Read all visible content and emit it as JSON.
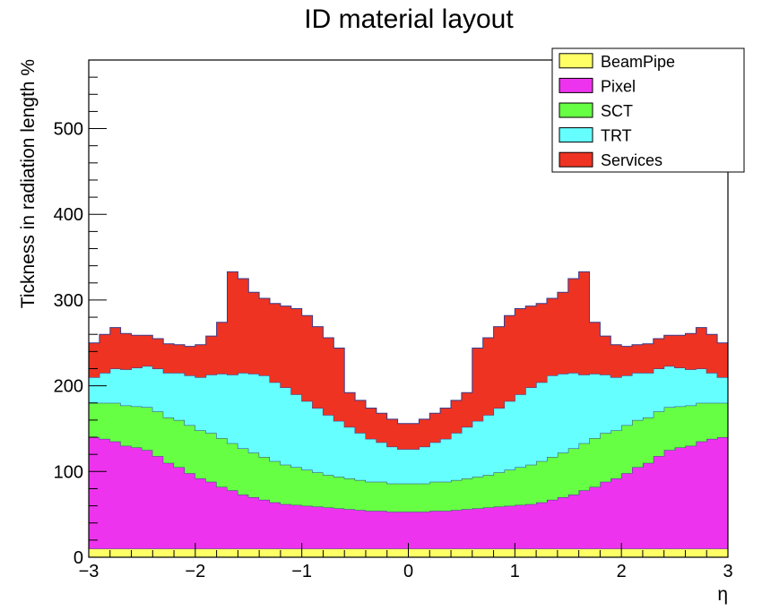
{
  "chart_data": {
    "type": "area",
    "stacked": true,
    "title": "ID material layout",
    "xlabel": "η",
    "ylabel": "Tickness in radiation length %",
    "xlim": [
      -3,
      3
    ],
    "ylim": [
      0,
      580
    ],
    "x_ticks": [
      -3,
      -2,
      -1,
      0,
      1,
      2,
      3
    ],
    "x_tick_labels": [
      "−3",
      "−2",
      "−1",
      "0",
      "1",
      "2",
      "3"
    ],
    "y_ticks": [
      0,
      100,
      200,
      300,
      400,
      500
    ],
    "y_tick_labels": [
      "0",
      "100",
      "200",
      "300",
      "400",
      "500"
    ],
    "grid": false,
    "legend_position": "top-right",
    "x": [
      -2.95,
      -2.85,
      -2.75,
      -2.65,
      -2.55,
      -2.45,
      -2.35,
      -2.25,
      -2.15,
      -2.05,
      -1.95,
      -1.85,
      -1.75,
      -1.65,
      -1.55,
      -1.45,
      -1.35,
      -1.25,
      -1.15,
      -1.05,
      -0.95,
      -0.85,
      -0.75,
      -0.65,
      -0.55,
      -0.45,
      -0.35,
      -0.25,
      -0.15,
      -0.05,
      0.05,
      0.15,
      0.25,
      0.35,
      0.45,
      0.55,
      0.65,
      0.75,
      0.85,
      0.95,
      1.05,
      1.15,
      1.25,
      1.35,
      1.45,
      1.55,
      1.65,
      1.75,
      1.85,
      1.95,
      2.05,
      2.15,
      2.25,
      2.35,
      2.45,
      2.55,
      2.65,
      2.75,
      2.85,
      2.95
    ],
    "series": [
      {
        "name": "BeamPipe",
        "color": "#ffff66",
        "values": [
          10,
          10,
          10,
          10,
          10,
          10,
          10,
          10,
          10,
          10,
          10,
          10,
          10,
          10,
          10,
          10,
          10,
          10,
          10,
          10,
          10,
          10,
          10,
          10,
          10,
          10,
          10,
          10,
          10,
          10,
          10,
          10,
          10,
          10,
          10,
          10,
          10,
          10,
          10,
          10,
          10,
          10,
          10,
          10,
          10,
          10,
          10,
          10,
          10,
          10,
          10,
          10,
          10,
          10,
          10,
          10,
          10,
          10,
          10,
          10
        ]
      },
      {
        "name": "Pixel",
        "color": "#ee33ee",
        "values": [
          130,
          128,
          125,
          120,
          118,
          115,
          108,
          100,
          95,
          88,
          82,
          78,
          72,
          68,
          63,
          60,
          57,
          54,
          52,
          51,
          50,
          49,
          48,
          47,
          46,
          45,
          44,
          44,
          43,
          43,
          43,
          43,
          44,
          44,
          45,
          46,
          47,
          48,
          49,
          50,
          51,
          52,
          54,
          57,
          60,
          63,
          68,
          72,
          78,
          82,
          88,
          95,
          100,
          108,
          115,
          118,
          120,
          125,
          128,
          130
        ]
      },
      {
        "name": "SCT",
        "color": "#66ff44",
        "values": [
          40,
          42,
          45,
          47,
          48,
          50,
          52,
          53,
          55,
          56,
          56,
          57,
          57,
          55,
          54,
          52,
          50,
          48,
          46,
          44,
          42,
          40,
          38,
          37,
          36,
          35,
          34,
          34,
          33,
          33,
          33,
          33,
          34,
          34,
          35,
          36,
          37,
          38,
          40,
          42,
          44,
          46,
          48,
          50,
          52,
          54,
          55,
          57,
          57,
          56,
          56,
          55,
          53,
          52,
          50,
          48,
          47,
          45,
          42,
          40
        ]
      },
      {
        "name": "TRT",
        "color": "#66ffff",
        "values": [
          30,
          35,
          40,
          42,
          45,
          48,
          50,
          52,
          55,
          58,
          62,
          68,
          75,
          80,
          88,
          92,
          95,
          92,
          90,
          85,
          80,
          75,
          70,
          65,
          60,
          55,
          50,
          46,
          43,
          40,
          40,
          43,
          46,
          50,
          55,
          60,
          65,
          70,
          75,
          80,
          85,
          90,
          92,
          95,
          92,
          88,
          80,
          75,
          68,
          62,
          58,
          55,
          52,
          50,
          48,
          45,
          42,
          40,
          35,
          30
        ]
      },
      {
        "name": "Services",
        "color": "#ee3322",
        "values": [
          40,
          45,
          48,
          42,
          38,
          36,
          35,
          34,
          33,
          34,
          38,
          45,
          60,
          120,
          110,
          95,
          90,
          92,
          95,
          100,
          100,
          95,
          90,
          85,
          40,
          38,
          36,
          34,
          32,
          30,
          30,
          32,
          34,
          36,
          38,
          40,
          85,
          90,
          95,
          100,
          100,
          95,
          92,
          90,
          95,
          110,
          120,
          60,
          45,
          38,
          34,
          33,
          34,
          35,
          36,
          38,
          42,
          48,
          45,
          40
        ]
      }
    ]
  }
}
